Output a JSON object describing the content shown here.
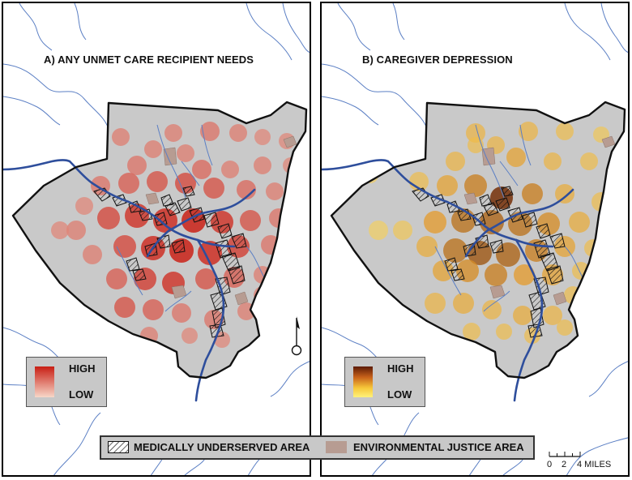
{
  "panels": [
    {
      "id": "a",
      "title": "A) ANY UNMET CARE RECIPIENT NEEDS",
      "legend": {
        "high": "HIGH",
        "low": "LOW"
      }
    },
    {
      "id": "b",
      "title": "B) CAREGIVER DEPRESSION",
      "legend": {
        "high": "HIGH",
        "low": "LOW"
      }
    }
  ],
  "legend": {
    "medically_underserved": "MEDICALLY UNDERSERVED AREA",
    "environmental_justice": "ENVIRONMENTAL JUSTICE AREA"
  },
  "scale": {
    "ticks": [
      "0",
      "2",
      "4 MILES"
    ]
  },
  "colors": {
    "county_fill": "#c9c9c9",
    "river": "#2e4e9c",
    "stream": "#5b7fc4",
    "env_justice": "#b79c92",
    "panel_a_high": "#c81e14",
    "panel_a_low": "#f7d7c8",
    "panel_b_high": "#5c1a06",
    "panel_b_mid": "#e49a2a",
    "panel_b_low": "#fff27a"
  }
}
